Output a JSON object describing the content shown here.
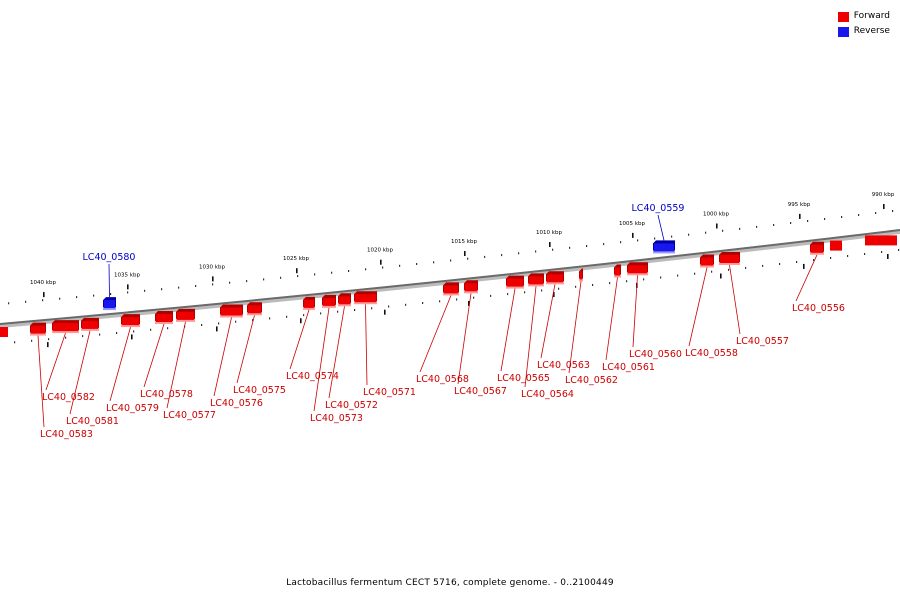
{
  "legend": {
    "forward_label": "Forward",
    "reverse_label": "Reverse",
    "forward_color": "#ee0000",
    "reverse_color": "#1818ee"
  },
  "caption": "Lactobacillus fermentum CECT 5716, complete genome. - 0..2100449",
  "colors": {
    "forward_label_color": "#cc0000",
    "reverse_label_color": "#0000cc",
    "backbone": "#777777"
  },
  "ticks": [
    {
      "label": "1040 kbp",
      "kbp": 1040
    },
    {
      "label": "1035 kbp",
      "kbp": 1035
    },
    {
      "label": "1030 kbp",
      "kbp": 1030
    },
    {
      "label": "1025 kbp",
      "kbp": 1025
    },
    {
      "label": "1020 kbp",
      "kbp": 1020
    },
    {
      "label": "1015 kbp",
      "kbp": 1015
    },
    {
      "label": "1010 kbp",
      "kbp": 1010
    },
    {
      "label": "1005 kbp",
      "kbp": 1005
    },
    {
      "label": "1000 kbp",
      "kbp": 1000
    },
    {
      "label": "995 kbp",
      "kbp": 995
    },
    {
      "label": "990 kbp",
      "kbp": 990
    }
  ],
  "genes": [
    {
      "name": "LC40_0583",
      "strand": "forward"
    },
    {
      "name": "LC40_0582",
      "strand": "forward"
    },
    {
      "name": "LC40_0581",
      "strand": "forward"
    },
    {
      "name": "LC40_0580",
      "strand": "reverse"
    },
    {
      "name": "LC40_0579",
      "strand": "forward"
    },
    {
      "name": "LC40_0578",
      "strand": "forward"
    },
    {
      "name": "LC40_0577",
      "strand": "forward"
    },
    {
      "name": "LC40_0576",
      "strand": "forward"
    },
    {
      "name": "LC40_0575",
      "strand": "forward"
    },
    {
      "name": "LC40_0574",
      "strand": "forward"
    },
    {
      "name": "LC40_0573",
      "strand": "forward"
    },
    {
      "name": "LC40_0572",
      "strand": "forward"
    },
    {
      "name": "LC40_0571",
      "strand": "forward"
    },
    {
      "name": "LC40_0568",
      "strand": "forward"
    },
    {
      "name": "LC40_0567",
      "strand": "forward"
    },
    {
      "name": "LC40_0565",
      "strand": "forward"
    },
    {
      "name": "LC40_0564",
      "strand": "forward"
    },
    {
      "name": "LC40_0563",
      "strand": "forward"
    },
    {
      "name": "LC40_0562",
      "strand": "forward"
    },
    {
      "name": "LC40_0561",
      "strand": "forward"
    },
    {
      "name": "LC40_0560",
      "strand": "forward"
    },
    {
      "name": "LC40_0559",
      "strand": "reverse"
    },
    {
      "name": "LC40_0558",
      "strand": "forward"
    },
    {
      "name": "LC40_0557",
      "strand": "forward"
    },
    {
      "name": "LC40_0556",
      "strand": "forward"
    }
  ]
}
